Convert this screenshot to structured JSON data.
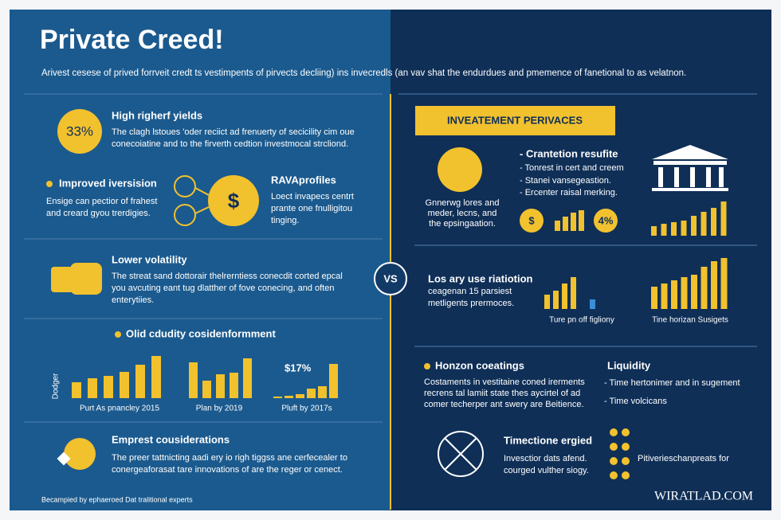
{
  "title": "Private Creed!",
  "subtitle": "Arivest cesese of prived forrveit credt ts vestimpents of pirvects decliing) ins invecredls (an vav shat the endurdues and pmemence of fanetional to as velatnon.",
  "left": {
    "yields": {
      "badge": "33%",
      "heading": "High righerf yields",
      "lines": [
        "The clagh lstoues 'oder reciict ad frenuerty of secicility cim oue",
        "conecoiatine and to the firverth cedtion investmocal strcliond."
      ]
    },
    "diversification": {
      "heading": "Improved iversision",
      "badge": "$",
      "lines": [
        "Ensige can pectior of frahest",
        "and creard gyou trerdigies."
      ]
    },
    "profiles": {
      "heading": "RAVAprofiles",
      "lines": [
        "Loect invapecs centrt",
        "prante one fnulligitou",
        "tinging."
      ]
    },
    "volatility": {
      "heading": "Lower volatility",
      "lines": [
        "The streat sand dottorair thelrerntiess conecdit corted epcal",
        "you avcuting eant tug dlatther of fove conecing, and often",
        "enterytiies."
      ]
    },
    "liquidity": {
      "heading": "Olid cdudity cosidenformment",
      "axis_label": "Dodger",
      "charts": [
        {
          "label": "Purt As pnancley 2015",
          "color": "#f2c12e",
          "values": [
            2,
            2.5,
            2.8,
            3.3,
            4.2,
            5.3
          ]
        },
        {
          "label": "Plan by 2019",
          "color": "#f2c12e",
          "values": [
            4.5,
            2.2,
            3,
            3.2,
            5
          ]
        },
        {
          "label": "Pluft by 2017s",
          "annotation": "$17%",
          "color": "#f2c12e",
          "values": [
            0.2,
            0.3,
            0.5,
            1.2,
            1.5,
            4.3
          ]
        }
      ]
    },
    "considerations": {
      "heading": "Emprest cousiderations",
      "lines": [
        "The preer tattnicting aadi ery io righ tiggss ane cerfecealer to",
        "conergeaforasat tare innovations of are the reger or cenect."
      ]
    },
    "footer": "Becampied by ephaeroed Dat tralitional experts"
  },
  "vs": "VS",
  "right": {
    "banner": "INVEATEMENT PERIVACES",
    "intro": {
      "lines": [
        "Gnnerwg lores and",
        "meder, lecns, and",
        "the epsingaation."
      ]
    },
    "results": {
      "heading": "- Crantetion resufite",
      "items": [
        "- Tonrest in cert and creem",
        "- Stanei vansegeastion.",
        "- Ercenter raisal merking."
      ]
    },
    "badges": [
      "$",
      "4%"
    ],
    "charts": [
      {
        "color": "#f2c12e",
        "values": [
          1.3,
          1.8,
          2.3,
          2.6
        ]
      },
      {
        "color": "#f2c12e",
        "values": [
          1.2,
          1.5,
          1.7,
          1.9,
          2.5,
          3,
          3.5,
          4.3
        ]
      },
      {
        "label": "Ture pn off figliony",
        "color": "#f2c12e",
        "values": [
          1.8,
          2.3,
          3.2,
          4
        ]
      },
      {
        "label": "Tine horizan Susigets",
        "color": "#f2c12e",
        "values": [
          2.8,
          3.2,
          3.6,
          4,
          4.3,
          5.3,
          6,
          6.4
        ]
      }
    ],
    "relation": {
      "heading": "Los ary use riatiotion",
      "lines": [
        "ceagenan 15 parsiest",
        "metligents prermoces."
      ]
    },
    "horizon": {
      "heading": "Honzon coeatings",
      "lines": [
        "Costaments in vestitaine coned irerments",
        "recrens tal lamiit state thes aycirtel of ad",
        "comer techerper ant swery are Beitience."
      ]
    },
    "liquidity": {
      "heading": "Liquidity",
      "items": [
        "- Time hertonimer and in sugement",
        "- Time volcicans"
      ]
    },
    "time": {
      "heading": "Timectione ergied",
      "lines": [
        "Invesctior dats afend.",
        "courged vulther siogy."
      ]
    },
    "coins": "Pitiverieschanpreats for",
    "brand": "WIRATLAD.COM"
  }
}
